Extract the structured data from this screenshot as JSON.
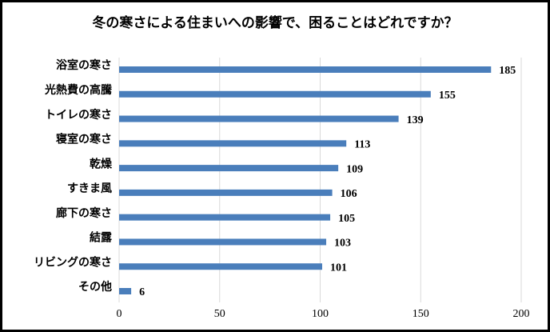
{
  "chart_data": {
    "type": "bar",
    "orientation": "horizontal",
    "title": "冬の寒さによる住まいへの影響で、困ることはどれですか？",
    "categories": [
      "浴室の寒さ",
      "光熱費の高騰",
      "トイレの寒さ",
      "寝室の寒さ",
      "乾燥",
      "すきま風",
      "廊下の寒さ",
      "結露",
      "リビングの寒さ",
      "その他"
    ],
    "values": [
      185,
      155,
      139,
      113,
      109,
      106,
      105,
      103,
      101,
      6
    ],
    "color": "#4a7ebb",
    "xlim": [
      0,
      200
    ],
    "xticks": [
      0,
      50,
      100,
      150,
      200
    ],
    "grid": true
  }
}
